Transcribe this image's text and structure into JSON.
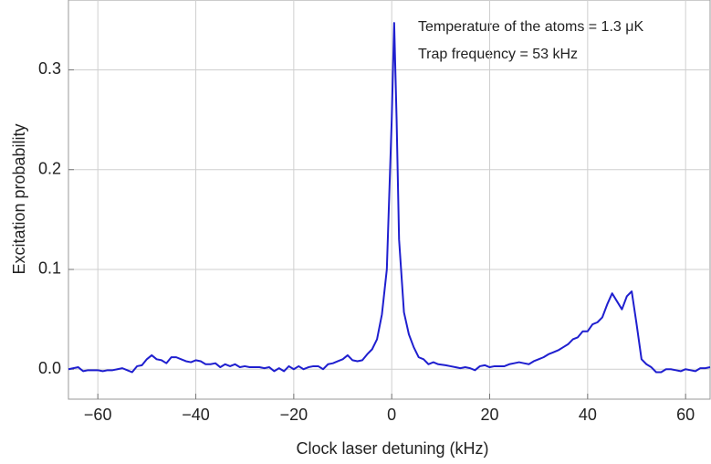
{
  "chart_data": {
    "type": "line",
    "xlabel": "Clock laser detuning (kHz)",
    "ylabel": "Excitation probability",
    "annotations": [
      "Temperature of the atoms = 1.3 μK",
      "Trap frequency = 53 kHz"
    ],
    "xlim": [
      -66,
      65
    ],
    "ylim": [
      -0.03,
      0.37
    ],
    "xticks": [
      {
        "value": -60,
        "label": "−60"
      },
      {
        "value": -40,
        "label": "−40"
      },
      {
        "value": -20,
        "label": "−20"
      },
      0,
      20,
      40,
      60
    ],
    "yticks": [
      {
        "value": 0,
        "label": "0.0"
      },
      0.1,
      0.2,
      0.3
    ],
    "grid": true,
    "series": [
      {
        "color": "#1f1fcf",
        "x": [
          -66,
          -65,
          -64,
          -63,
          -62,
          -61,
          -60,
          -59,
          -58,
          -57,
          -56,
          -55,
          -54,
          -53,
          -52,
          -51,
          -50,
          -49,
          -48,
          -47,
          -46,
          -45,
          -44,
          -43,
          -42,
          -41,
          -40,
          -39,
          -38,
          -37,
          -36,
          -35,
          -34,
          -33,
          -32,
          -31,
          -30,
          -29,
          -28,
          -27,
          -26,
          -25,
          -24,
          -23,
          -22,
          -21,
          -20,
          -19,
          -18,
          -17,
          -16,
          -15,
          -14,
          -13,
          -12,
          -11,
          -10,
          -9,
          -8,
          -7,
          -6,
          -5,
          -4,
          -3,
          -2,
          -1,
          0,
          0.5,
          1,
          1.5,
          2.5,
          3.5,
          4.5,
          5.5,
          6.5,
          7.5,
          8.5,
          9.5,
          11,
          12,
          13,
          14,
          15,
          16,
          17,
          18,
          19,
          20,
          21,
          22,
          23,
          24,
          25,
          26,
          27,
          28,
          29,
          30,
          31,
          32,
          33,
          34,
          35,
          36,
          37,
          38,
          39,
          40,
          41,
          42,
          43,
          44,
          45,
          46,
          47,
          48,
          49,
          50,
          51,
          52,
          53,
          54,
          55,
          56,
          57,
          58,
          59,
          60,
          61,
          62,
          63,
          64,
          65
        ],
        "values": [
          0,
          0.001,
          0.002,
          -0.002,
          -0.001,
          -0.001,
          -0.001,
          -0.002,
          -0.001,
          -0.001,
          0,
          0.001,
          -0.001,
          -0.003,
          0.003,
          0.004,
          0.01,
          0.014,
          0.01,
          0.009,
          0.006,
          0.012,
          0.012,
          0.01,
          0.008,
          0.007,
          0.009,
          0.008,
          0.005,
          0.005,
          0.006,
          0.002,
          0.005,
          0.003,
          0.005,
          0.002,
          0.003,
          0.002,
          0.002,
          0.002,
          0.001,
          0.002,
          -0.002,
          0.001,
          -0.002,
          0.003,
          0,
          0.003,
          0,
          0.002,
          0.003,
          0.003,
          0,
          0.005,
          0.006,
          0.008,
          0.01,
          0.014,
          0.009,
          0.008,
          0.009,
          0.015,
          0.02,
          0.03,
          0.055,
          0.1,
          0.25,
          0.347,
          0.25,
          0.13,
          0.057,
          0.035,
          0.022,
          0.012,
          0.01,
          0.005,
          0.007,
          0.005,
          0.004,
          0.003,
          0.002,
          0.001,
          0.002,
          0.001,
          -0.001,
          0.003,
          0.004,
          0.002,
          0.003,
          0.003,
          0.003,
          0.005,
          0.006,
          0.007,
          0.006,
          0.005,
          0.008,
          0.01,
          0.012,
          0.015,
          0.017,
          0.019,
          0.022,
          0.025,
          0.03,
          0.032,
          0.038,
          0.038,
          0.045,
          0.047,
          0.052,
          0.065,
          0.076,
          0.068,
          0.06,
          0.073,
          0.078,
          0.045,
          0.01,
          0.005,
          0.002,
          -0.003,
          -0.003,
          0,
          0,
          -0.001,
          -0.002,
          0,
          -0.001,
          -0.002,
          0.001,
          0.001,
          0.002
        ]
      }
    ]
  }
}
